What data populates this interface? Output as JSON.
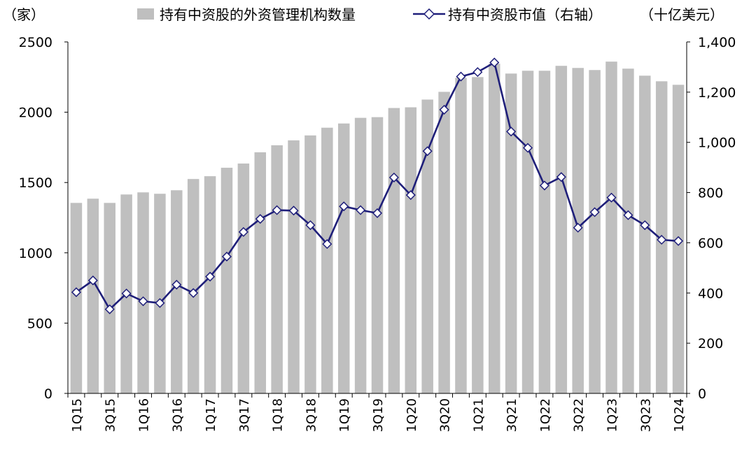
{
  "chart_data": {
    "type": "bar+line",
    "title": "",
    "left_axis_unit": "（家）",
    "right_axis_unit": "（十亿美元）",
    "ylim_left": [
      0,
      2500
    ],
    "yticks_left": [
      "0",
      "500",
      "1000",
      "1500",
      "2000",
      "2500"
    ],
    "ylim_right": [
      0,
      1400
    ],
    "yticks_right": [
      "0",
      "200",
      "400",
      "600",
      "800",
      "1,000",
      "1,200",
      "1,400"
    ],
    "categories": [
      "1Q15",
      "2Q15",
      "3Q15",
      "4Q15",
      "1Q16",
      "2Q16",
      "3Q16",
      "4Q16",
      "1Q17",
      "2Q17",
      "3Q17",
      "4Q17",
      "1Q18",
      "2Q18",
      "3Q18",
      "4Q18",
      "1Q19",
      "2Q19",
      "3Q19",
      "4Q19",
      "1Q20",
      "2Q20",
      "3Q20",
      "4Q20",
      "1Q21",
      "2Q21",
      "3Q21",
      "4Q21",
      "1Q22",
      "2Q22",
      "3Q22",
      "4Q22",
      "1Q23",
      "2Q23",
      "3Q23",
      "4Q23",
      "1Q24"
    ],
    "x_tick_labels": [
      "1Q15",
      "3Q15",
      "1Q16",
      "3Q16",
      "1Q17",
      "3Q17",
      "1Q18",
      "3Q18",
      "1Q19",
      "3Q19",
      "1Q20",
      "3Q20",
      "1Q21",
      "3Q21",
      "1Q22",
      "3Q22",
      "1Q23",
      "3Q23",
      "1Q24"
    ],
    "series": [
      {
        "name": "持有中资股的外资管理机构数量",
        "type": "bar",
        "axis": "left",
        "color": "#bfbfbf",
        "values": [
          1355,
          1385,
          1355,
          1415,
          1430,
          1420,
          1445,
          1525,
          1545,
          1605,
          1635,
          1715,
          1765,
          1800,
          1835,
          1890,
          1920,
          1960,
          1965,
          2030,
          2035,
          2090,
          2145,
          2245,
          2250,
          2345,
          2275,
          2295,
          2295,
          2330,
          2315,
          2300,
          2360,
          2310,
          2260,
          2220,
          2195
        ]
      },
      {
        "name": "持有中资股市值（右轴）",
        "type": "line",
        "axis": "right",
        "color": "#1f1f7a",
        "values": [
          403,
          450,
          335,
          398,
          367,
          360,
          433,
          400,
          465,
          545,
          643,
          695,
          730,
          728,
          670,
          595,
          745,
          730,
          718,
          860,
          790,
          965,
          1130,
          1262,
          1280,
          1318,
          1043,
          978,
          828,
          862,
          660,
          722,
          780,
          710,
          670,
          612,
          607
        ]
      }
    ]
  }
}
